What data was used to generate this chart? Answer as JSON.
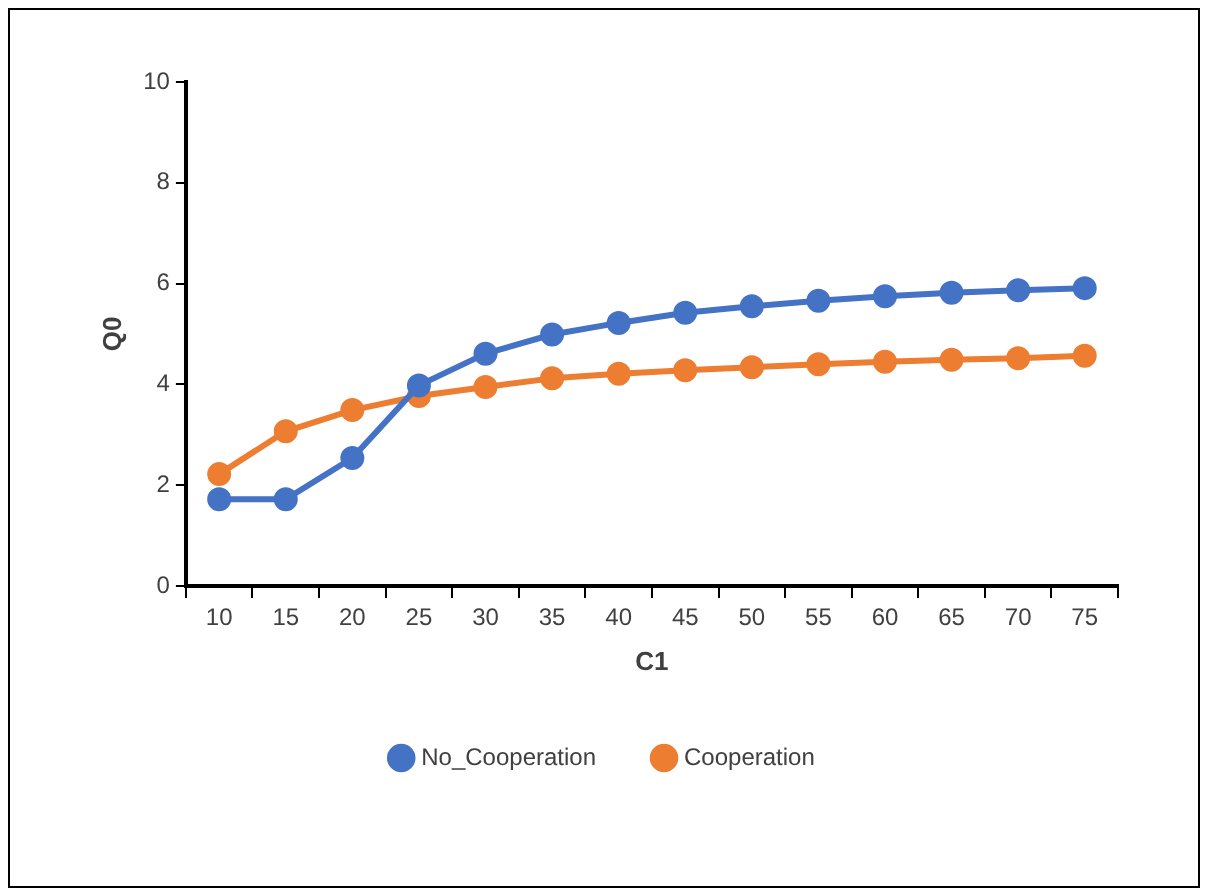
{
  "chart_data": {
    "type": "line",
    "xlabel": "C1",
    "ylabel": "Q0",
    "categories": [
      "10",
      "15",
      "20",
      "25",
      "30",
      "35",
      "40",
      "45",
      "50",
      "55",
      "60",
      "65",
      "70",
      "75"
    ],
    "series": [
      {
        "name": "No_Cooperation",
        "color": "#4472c4",
        "values": [
          1.72,
          1.72,
          2.54,
          3.98,
          4.61,
          4.99,
          5.22,
          5.42,
          5.55,
          5.66,
          5.75,
          5.82,
          5.87,
          5.91
        ]
      },
      {
        "name": "Cooperation",
        "color": "#ed7d31",
        "values": [
          2.22,
          3.07,
          3.49,
          3.77,
          3.95,
          4.12,
          4.21,
          4.28,
          4.34,
          4.4,
          4.45,
          4.49,
          4.52,
          4.57
        ]
      }
    ],
    "ylim": [
      0,
      10
    ],
    "yticks": [
      0,
      2,
      4,
      6,
      8,
      10
    ],
    "grid": false,
    "legend": "bottom",
    "marker": "circle",
    "line_style": "solid"
  }
}
